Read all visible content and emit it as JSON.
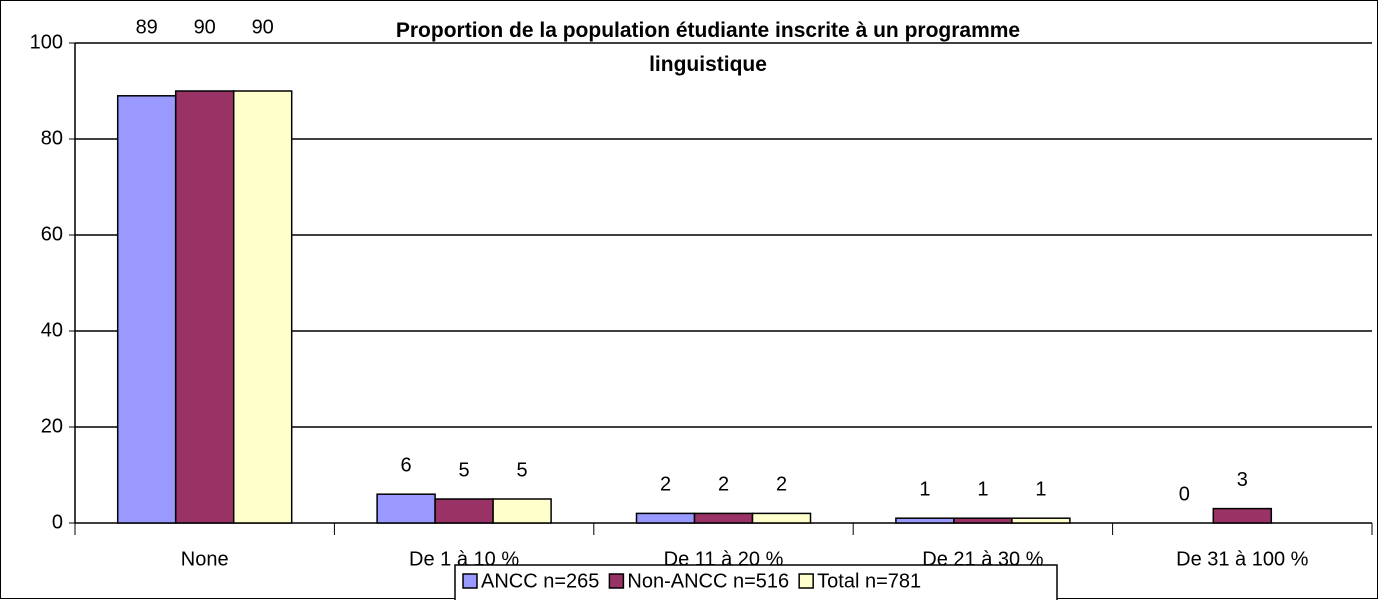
{
  "chart_data": {
    "type": "bar",
    "title": "Proportion de la population étudiante inscrite à un programme linguistique",
    "categories": [
      "None",
      "De 1 à 10 %",
      "De 11 à 20 %",
      "De 21 à 30 %",
      "De 31 à 100 %"
    ],
    "series": [
      {
        "name": "ANCC n=265",
        "color": "#9999ff",
        "values": [
          89,
          6,
          2,
          1,
          0
        ]
      },
      {
        "name": "Non-ANCC n=516",
        "color": "#993366",
        "values": [
          90,
          5,
          2,
          1,
          3
        ]
      },
      {
        "name": "Total n=781",
        "color": "#ffffcc",
        "values": [
          90,
          5,
          2,
          1,
          null
        ]
      }
    ],
    "ylim": [
      0,
      100
    ],
    "yticks": [
      0,
      20,
      40,
      60,
      80,
      100
    ],
    "grid": true,
    "legend": "bottom"
  }
}
